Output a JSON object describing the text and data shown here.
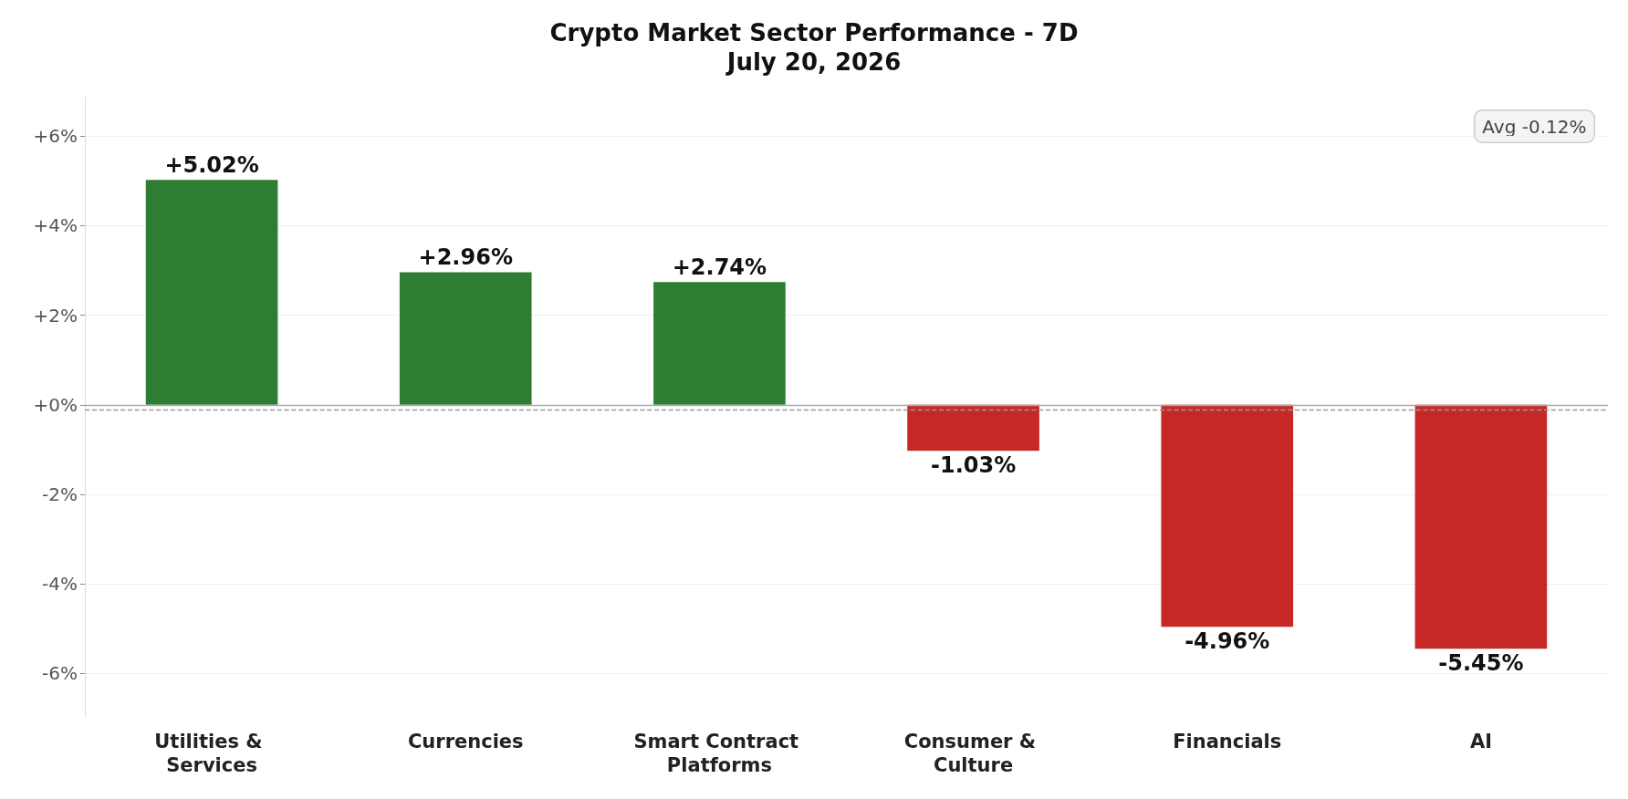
{
  "chart_data": {
    "type": "bar",
    "title": "Crypto Market Sector Performance - 7D",
    "subtitle": "July 20, 2026",
    "categories": [
      "Utilities & Services",
      "Currencies",
      "Smart Contract Platforms",
      "Consumer & Culture",
      "Financials",
      "AI"
    ],
    "values": [
      5.02,
      2.96,
      2.74,
      -1.03,
      -4.96,
      -5.45
    ],
    "colors": [
      "#2e7d32",
      "#2e7d32",
      "#2e7d32",
      "#c62828",
      "#c62828",
      "#c62828"
    ],
    "value_labels": [
      "+5.02%",
      "+2.96%",
      "+2.74%",
      "-1.03%",
      "-4.96%",
      "-5.45%"
    ],
    "ylim": [
      -6.97,
      6.86
    ],
    "yticks": [
      {
        "value": -6,
        "label": "-6%"
      },
      {
        "value": -4,
        "label": "-4%"
      },
      {
        "value": -2,
        "label": "-2%"
      },
      {
        "value": 0,
        "label": "+0%"
      },
      {
        "value": 2,
        "label": "+2%"
      },
      {
        "value": 4,
        "label": "+4%"
      },
      {
        "value": 6,
        "label": "+6%"
      }
    ],
    "grid": "y",
    "ref_lines": [
      {
        "axis": "y",
        "value": 0,
        "color": "#aaaaaa",
        "line_style": "solid"
      },
      {
        "axis": "y",
        "value": -0.12,
        "color": "#999999",
        "line_style": "dashed"
      }
    ],
    "annotations": [
      "Avg -0.12%"
    ]
  }
}
